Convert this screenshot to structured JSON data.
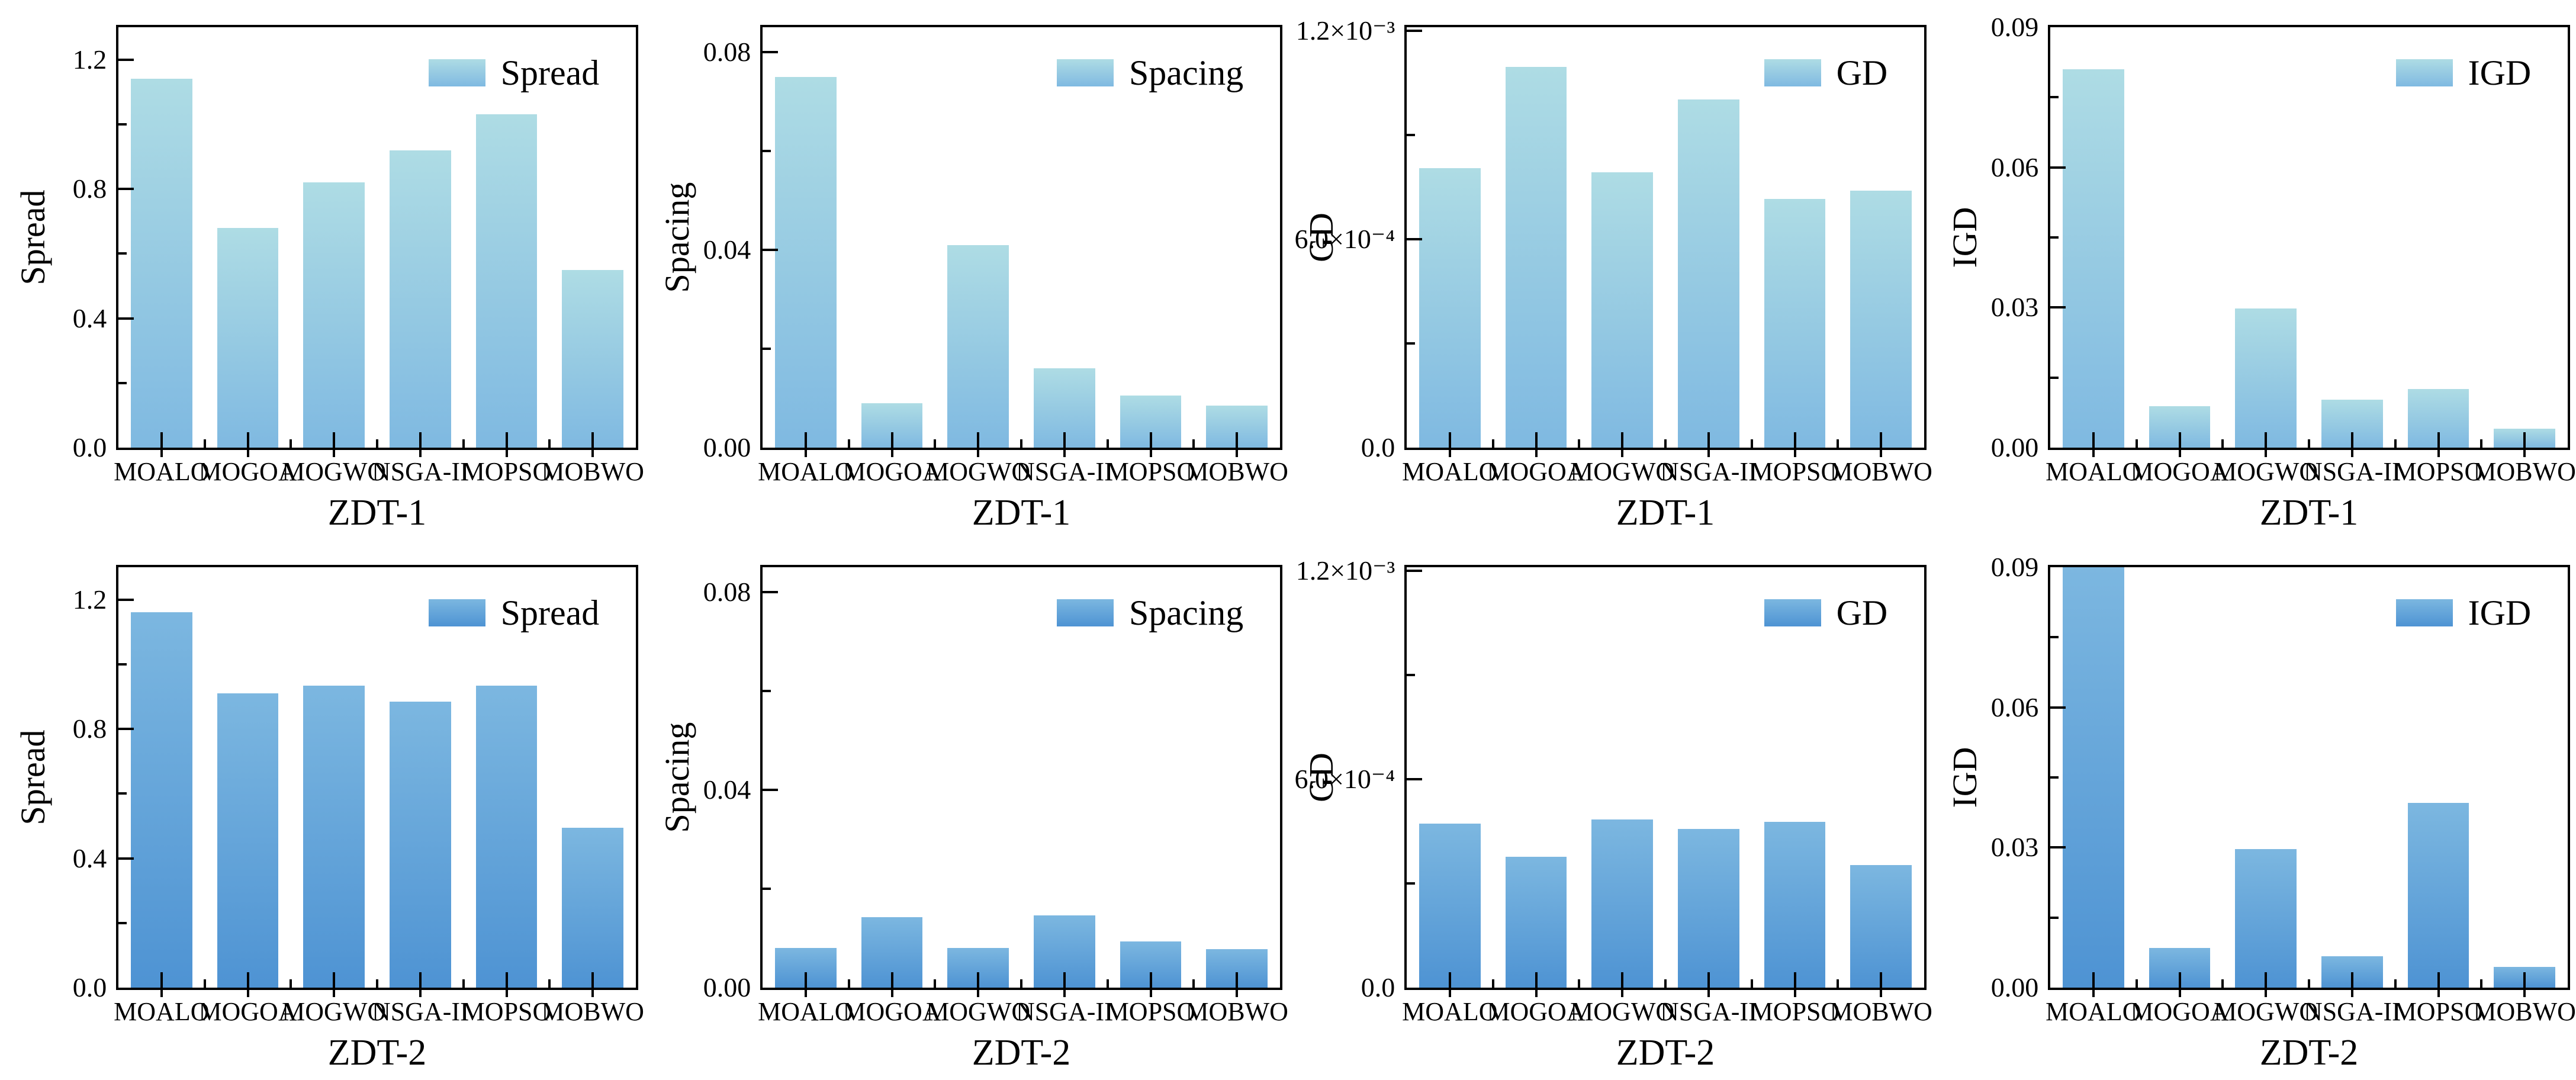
{
  "figure": {
    "rows": 2,
    "cols": 4,
    "background": "#ffffff",
    "axis_color": "#000000",
    "text_color": "#000000",
    "grid": false,
    "legend_position": "top-right"
  },
  "categories": [
    "MOALO",
    "MOGOA",
    "MOGWO",
    "NSGA-II",
    "MOPSO",
    "MOBWO"
  ],
  "chart_data": [
    {
      "type": "bar",
      "metric": "Spread",
      "benchmark": "ZDT-1",
      "legend_label": "Spread",
      "ylabel": "Spread",
      "xlabel": "ZDT-1",
      "values": [
        1.14,
        0.68,
        0.82,
        0.92,
        1.03,
        0.55
      ],
      "ylim": [
        0,
        1.3
      ],
      "yticks": {
        "values": [
          0,
          0.4,
          0.8,
          1.2
        ],
        "labels": [
          "0.0",
          "0.4",
          "0.8",
          "1.2"
        ]
      },
      "bar_gradient": [
        "#aedce4",
        "#7fb9e1"
      ]
    },
    {
      "type": "bar",
      "metric": "Spacing",
      "benchmark": "ZDT-1",
      "legend_label": "Spacing",
      "ylabel": "Spacing",
      "xlabel": "ZDT-1",
      "values": [
        0.075,
        0.009,
        0.041,
        0.016,
        0.0105,
        0.0085
      ],
      "ylim": [
        0,
        0.085
      ],
      "yticks": {
        "values": [
          0,
          0.04,
          0.08
        ],
        "labels": [
          "0.00",
          "0.04",
          "0.08"
        ]
      },
      "bar_gradient": [
        "#aedce4",
        "#7fb9e1"
      ]
    },
    {
      "type": "bar",
      "metric": "GD",
      "benchmark": "ZDT-1",
      "legend_label": "GD",
      "ylabel": "GD",
      "xlabel": "ZDT-1",
      "values": [
        0.000805,
        0.001095,
        0.000792,
        0.001002,
        0.000715,
        0.00074
      ],
      "ylim": [
        0,
        0.00121
      ],
      "yticks": {
        "values": [
          0,
          0.0006,
          0.0012
        ],
        "labels": [
          "0.0",
          "6.0×10⁻⁴",
          "1.2×10⁻³"
        ]
      },
      "bar_gradient": [
        "#aedce4",
        "#7fb9e1"
      ]
    },
    {
      "type": "bar",
      "metric": "IGD",
      "benchmark": "ZDT-1",
      "legend_label": "IGD",
      "ylabel": "IGD",
      "xlabel": "ZDT-1",
      "values": [
        0.081,
        0.0089,
        0.0298,
        0.0103,
        0.0125,
        0.0041
      ],
      "ylim": [
        0,
        0.09
      ],
      "yticks": {
        "values": [
          0,
          0.03,
          0.06,
          0.09
        ],
        "labels": [
          "0.00",
          "0.03",
          "0.06",
          "0.09"
        ]
      },
      "bar_gradient": [
        "#aedce4",
        "#7fb9e1"
      ]
    },
    {
      "type": "bar",
      "metric": "Spread",
      "benchmark": "ZDT-2",
      "legend_label": "Spread",
      "ylabel": "Spread",
      "xlabel": "ZDT-2",
      "values": [
        1.16,
        0.91,
        0.934,
        0.884,
        0.934,
        0.495
      ],
      "ylim": [
        0,
        1.3
      ],
      "yticks": {
        "values": [
          0,
          0.4,
          0.8,
          1.2
        ],
        "labels": [
          "0.0",
          "0.4",
          "0.8",
          "1.2"
        ]
      },
      "bar_gradient": [
        "#7cb7e0",
        "#4e93d3"
      ]
    },
    {
      "type": "bar",
      "metric": "Spacing",
      "benchmark": "ZDT-2",
      "legend_label": "Spacing",
      "ylabel": "Spacing",
      "xlabel": "ZDT-2",
      "values": [
        0.008,
        0.0142,
        0.008,
        0.0146,
        0.0093,
        0.0078
      ],
      "ylim": [
        0,
        0.085
      ],
      "yticks": {
        "values": [
          0,
          0.04,
          0.08
        ],
        "labels": [
          "0.00",
          "0.04",
          "0.08"
        ]
      },
      "bar_gradient": [
        "#7cb7e0",
        "#4e93d3"
      ]
    },
    {
      "type": "bar",
      "metric": "GD",
      "benchmark": "ZDT-2",
      "legend_label": "GD",
      "ylabel": "GD",
      "xlabel": "ZDT-2",
      "values": [
        0.000472,
        0.000376,
        0.000484,
        0.000457,
        0.000477,
        0.000353
      ],
      "ylim": [
        0,
        0.00121
      ],
      "yticks": {
        "values": [
          0,
          0.0006,
          0.0012
        ],
        "labels": [
          "0.0",
          "6.0×10⁻⁴",
          "1.2×10⁻³"
        ]
      },
      "bar_gradient": [
        "#7cb7e0",
        "#4e93d3"
      ]
    },
    {
      "type": "bar",
      "metric": "IGD",
      "benchmark": "ZDT-2",
      "legend_label": "IGD",
      "ylabel": "IGD",
      "xlabel": "ZDT-2",
      "values": [
        0.09,
        0.0085,
        0.0296,
        0.0067,
        0.0396,
        0.0045
      ],
      "ylim": [
        0,
        0.09
      ],
      "yticks": {
        "values": [
          0,
          0.03,
          0.06,
          0.09
        ],
        "labels": [
          "0.00",
          "0.03",
          "0.06",
          "0.09"
        ]
      },
      "bar_gradient": [
        "#7cb7e0",
        "#4e93d3"
      ]
    }
  ]
}
